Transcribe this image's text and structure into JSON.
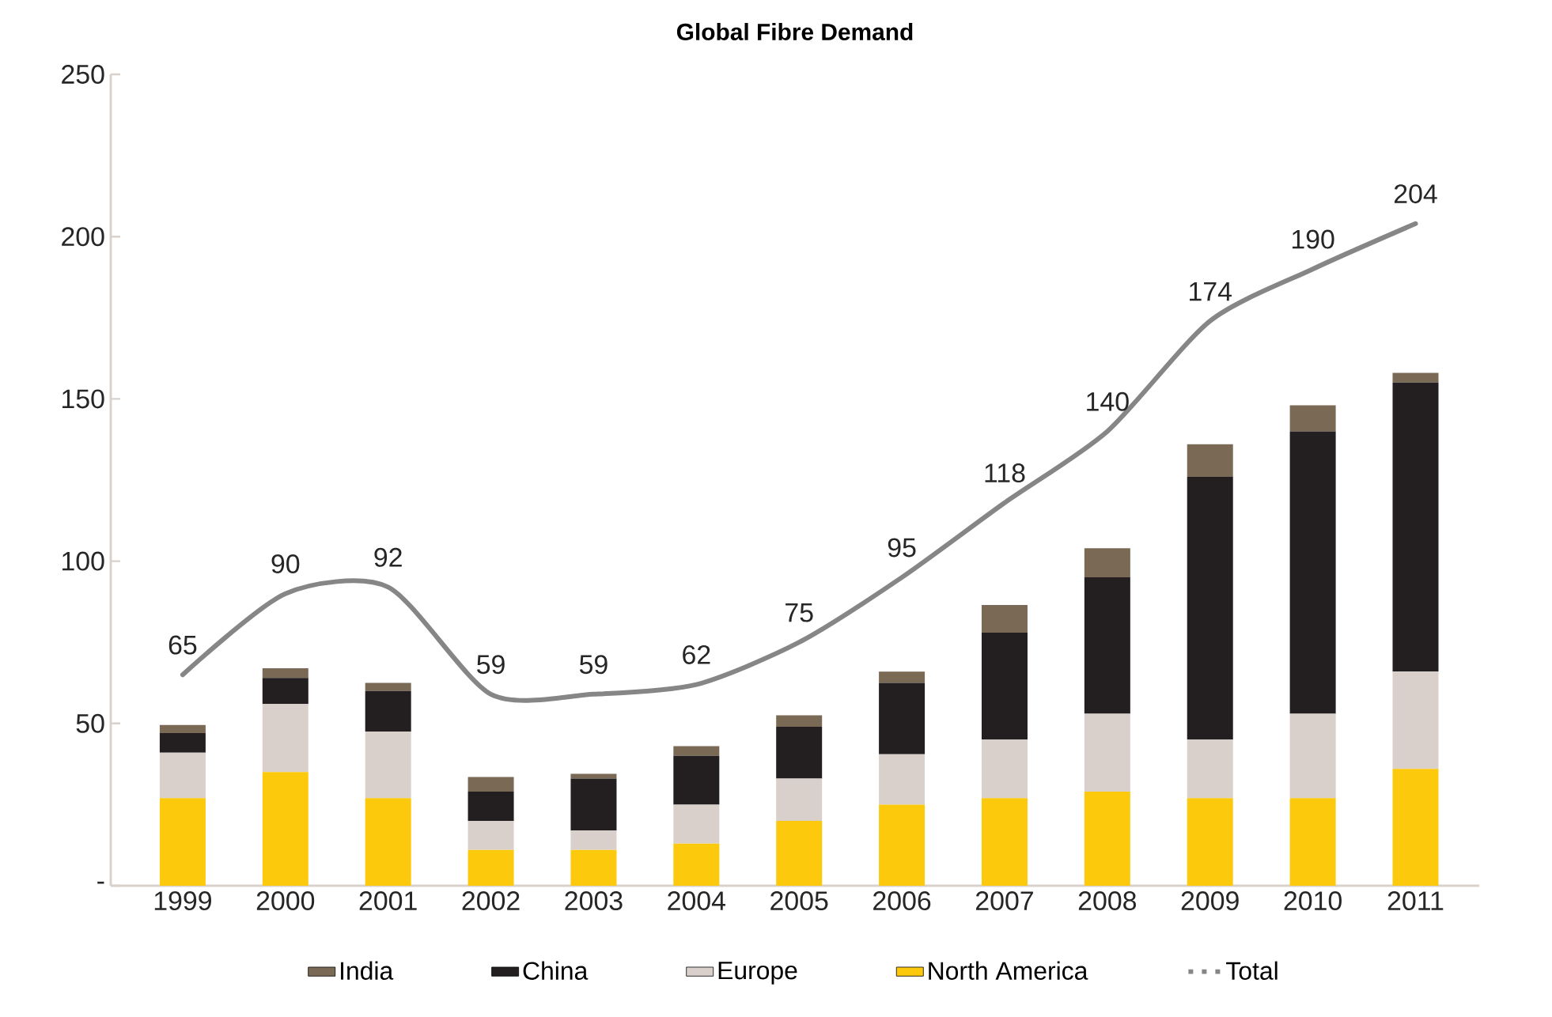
{
  "chart_data": {
    "type": "bar",
    "title": "Global Fibre Demand",
    "stacked": true,
    "legend": "bottom",
    "marker": "none",
    "categories": [
      "1999",
      "2000",
      "2001",
      "2002",
      "2003",
      "2004",
      "2005",
      "2006",
      "2007",
      "2008",
      "2009",
      "2010",
      "2011"
    ],
    "ylim": [
      0,
      250
    ],
    "yticks": [
      {
        "value": 0,
        "label": "-"
      },
      50,
      100,
      150,
      200,
      250
    ],
    "series": [
      {
        "name": "North America",
        "color": "#fcc90d",
        "values": [
          27,
          35,
          27,
          11,
          11,
          13,
          20,
          25,
          27,
          29,
          27,
          27,
          36
        ]
      },
      {
        "name": "Europe",
        "color": "#d9d0cb",
        "values": [
          14,
          21,
          20.5,
          9,
          6,
          12,
          13,
          15.5,
          18,
          24,
          18,
          26,
          30
        ]
      },
      {
        "name": "China",
        "color": "#231f20",
        "values": [
          6,
          8,
          12.5,
          9,
          16,
          15,
          16,
          22,
          33,
          42,
          81,
          87,
          89
        ]
      },
      {
        "name": "India",
        "color": "#7a6a55",
        "values": [
          2.5,
          3,
          2.5,
          4.5,
          1.5,
          3,
          3.5,
          3.5,
          8.5,
          9,
          10,
          8,
          3
        ]
      },
      {
        "name": "Total",
        "color": "#868686",
        "type": "line",
        "values": [
          65,
          90,
          92,
          59,
          59,
          62,
          75,
          95,
          118,
          140,
          174,
          190,
          204
        ],
        "value_labels": [
          "65",
          "90",
          "92",
          "59",
          "59",
          "62",
          "75",
          "95",
          "118",
          "140",
          "174",
          "190",
          "204"
        ]
      }
    ]
  }
}
